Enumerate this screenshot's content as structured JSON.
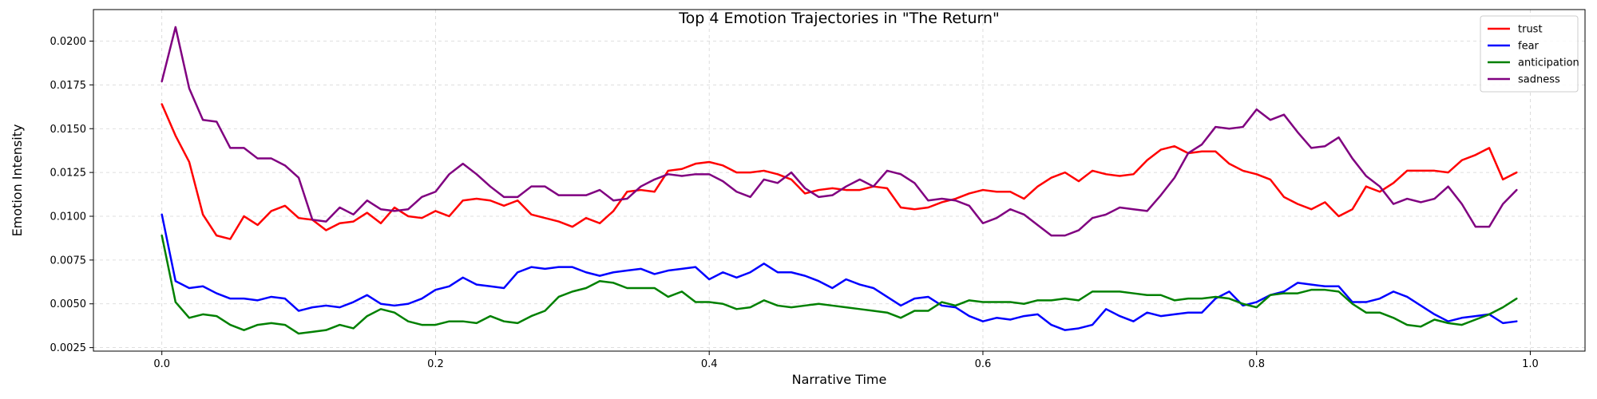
{
  "chart_data": {
    "type": "line",
    "title": "Top 4 Emotion Trajectories in \"The Return\"",
    "xlabel": "Narrative Time",
    "ylabel": "Emotion Intensity",
    "xlim": [
      -0.05,
      1.04
    ],
    "ylim": [
      0.0023,
      0.0218
    ],
    "xticks": [
      0.0,
      0.2,
      0.4,
      0.6,
      0.8,
      1.0
    ],
    "xtick_labels": [
      "0.0",
      "0.2",
      "0.4",
      "0.6",
      "0.8",
      "1.0"
    ],
    "yticks": [
      0.0025,
      0.005,
      0.0075,
      0.01,
      0.0125,
      0.015,
      0.0175,
      0.02
    ],
    "ytick_labels": [
      "0.0025",
      "0.0050",
      "0.0075",
      "0.0100",
      "0.0125",
      "0.0150",
      "0.0175",
      "0.0200"
    ],
    "grid": true,
    "legend_position": "top-right",
    "x": [
      0.0,
      0.01,
      0.02,
      0.03,
      0.04,
      0.05,
      0.06,
      0.07,
      0.08,
      0.09,
      0.1,
      0.11,
      0.12,
      0.13,
      0.14,
      0.15,
      0.16,
      0.17,
      0.18,
      0.19,
      0.2,
      0.21,
      0.22,
      0.23,
      0.24,
      0.25,
      0.26,
      0.27,
      0.28,
      0.29,
      0.3,
      0.31,
      0.32,
      0.33,
      0.34,
      0.35,
      0.36,
      0.37,
      0.38,
      0.39,
      0.4,
      0.41,
      0.42,
      0.43,
      0.44,
      0.45,
      0.46,
      0.47,
      0.48,
      0.49,
      0.5,
      0.51,
      0.52,
      0.53,
      0.54,
      0.55,
      0.56,
      0.57,
      0.58,
      0.59,
      0.6,
      0.61,
      0.62,
      0.63,
      0.64,
      0.65,
      0.66,
      0.67,
      0.68,
      0.69,
      0.7,
      0.71,
      0.72,
      0.73,
      0.74,
      0.75,
      0.76,
      0.77,
      0.78,
      0.79,
      0.8,
      0.81,
      0.82,
      0.83,
      0.84,
      0.85,
      0.86,
      0.87,
      0.88,
      0.89,
      0.9,
      0.91,
      0.92,
      0.93,
      0.94,
      0.95,
      0.96,
      0.97,
      0.98,
      0.99
    ],
    "series": [
      {
        "name": "trust",
        "color": "#ff0000",
        "values": [
          0.0164,
          0.0146,
          0.0131,
          0.0101,
          0.0089,
          0.0087,
          0.01,
          0.0095,
          0.0103,
          0.0106,
          0.0099,
          0.0098,
          0.0092,
          0.0096,
          0.0097,
          0.0102,
          0.0096,
          0.0105,
          0.01,
          0.0099,
          0.0103,
          0.01,
          0.0109,
          0.011,
          0.0109,
          0.0106,
          0.0109,
          0.0101,
          0.0099,
          0.0097,
          0.0094,
          0.0099,
          0.0096,
          0.0103,
          0.0114,
          0.0115,
          0.0114,
          0.0126,
          0.0127,
          0.013,
          0.0131,
          0.0129,
          0.0125,
          0.0125,
          0.0126,
          0.0124,
          0.0121,
          0.0113,
          0.0115,
          0.0116,
          0.0115,
          0.0115,
          0.0117,
          0.0116,
          0.0105,
          0.0104,
          0.0105,
          0.0108,
          0.011,
          0.0113,
          0.0115,
          0.0114,
          0.0114,
          0.011,
          0.0117,
          0.0122,
          0.0125,
          0.012,
          0.0126,
          0.0124,
          0.0123,
          0.0124,
          0.0132,
          0.0138,
          0.014,
          0.0136,
          0.0137,
          0.0137,
          0.013,
          0.0126,
          0.0124,
          0.0121,
          0.0111,
          0.0107,
          0.0104,
          0.0108,
          0.01,
          0.0104,
          0.0117,
          0.0114,
          0.0119,
          0.0126,
          0.0126,
          0.0126,
          0.0125,
          0.0132,
          0.0135,
          0.0139,
          0.0121,
          0.0125
        ]
      },
      {
        "name": "fear",
        "color": "#0000ff",
        "values": [
          0.0101,
          0.0063,
          0.0059,
          0.006,
          0.0056,
          0.0053,
          0.0053,
          0.0052,
          0.0054,
          0.0053,
          0.0046,
          0.0048,
          0.0049,
          0.0048,
          0.0051,
          0.0055,
          0.005,
          0.0049,
          0.005,
          0.0053,
          0.0058,
          0.006,
          0.0065,
          0.0061,
          0.006,
          0.0059,
          0.0068,
          0.0071,
          0.007,
          0.0071,
          0.0071,
          0.0068,
          0.0066,
          0.0068,
          0.0069,
          0.007,
          0.0067,
          0.0069,
          0.007,
          0.0071,
          0.0064,
          0.0068,
          0.0065,
          0.0068,
          0.0073,
          0.0068,
          0.0068,
          0.0066,
          0.0063,
          0.0059,
          0.0064,
          0.0061,
          0.0059,
          0.0054,
          0.0049,
          0.0053,
          0.0054,
          0.0049,
          0.0048,
          0.0043,
          0.004,
          0.0042,
          0.0041,
          0.0043,
          0.0044,
          0.0038,
          0.0035,
          0.0036,
          0.0038,
          0.0047,
          0.0043,
          0.004,
          0.0045,
          0.0043,
          0.0044,
          0.0045,
          0.0045,
          0.0053,
          0.0057,
          0.0049,
          0.0051,
          0.0055,
          0.0057,
          0.0062,
          0.0061,
          0.006,
          0.006,
          0.0051,
          0.0051,
          0.0053,
          0.0057,
          0.0054,
          0.0049,
          0.0044,
          0.004,
          0.0042,
          0.0043,
          0.0044,
          0.0039,
          0.004
        ]
      },
      {
        "name": "anticipation",
        "color": "#008000",
        "values": [
          0.0089,
          0.0051,
          0.0042,
          0.0044,
          0.0043,
          0.0038,
          0.0035,
          0.0038,
          0.0039,
          0.0038,
          0.0033,
          0.0034,
          0.0035,
          0.0038,
          0.0036,
          0.0043,
          0.0047,
          0.0045,
          0.004,
          0.0038,
          0.0038,
          0.004,
          0.004,
          0.0039,
          0.0043,
          0.004,
          0.0039,
          0.0043,
          0.0046,
          0.0054,
          0.0057,
          0.0059,
          0.0063,
          0.0062,
          0.0059,
          0.0059,
          0.0059,
          0.0054,
          0.0057,
          0.0051,
          0.0051,
          0.005,
          0.0047,
          0.0048,
          0.0052,
          0.0049,
          0.0048,
          0.0049,
          0.005,
          0.0049,
          0.0048,
          0.0047,
          0.0046,
          0.0045,
          0.0042,
          0.0046,
          0.0046,
          0.0051,
          0.0049,
          0.0052,
          0.0051,
          0.0051,
          0.0051,
          0.005,
          0.0052,
          0.0052,
          0.0053,
          0.0052,
          0.0057,
          0.0057,
          0.0057,
          0.0056,
          0.0055,
          0.0055,
          0.0052,
          0.0053,
          0.0053,
          0.0054,
          0.0053,
          0.005,
          0.0048,
          0.0055,
          0.0056,
          0.0056,
          0.0058,
          0.0058,
          0.0057,
          0.005,
          0.0045,
          0.0045,
          0.0042,
          0.0038,
          0.0037,
          0.0041,
          0.0039,
          0.0038,
          0.0041,
          0.0044,
          0.0048,
          0.0053
        ]
      },
      {
        "name": "sadness",
        "color": "#800080",
        "values": [
          0.0177,
          0.0208,
          0.0173,
          0.0155,
          0.0154,
          0.0139,
          0.0139,
          0.0133,
          0.0133,
          0.0129,
          0.0122,
          0.0098,
          0.0097,
          0.0105,
          0.0101,
          0.0109,
          0.0104,
          0.0103,
          0.0104,
          0.0111,
          0.0114,
          0.0124,
          0.013,
          0.0124,
          0.0117,
          0.0111,
          0.0111,
          0.0117,
          0.0117,
          0.0112,
          0.0112,
          0.0112,
          0.0115,
          0.0109,
          0.011,
          0.0117,
          0.0121,
          0.0124,
          0.0123,
          0.0124,
          0.0124,
          0.012,
          0.0114,
          0.0111,
          0.0121,
          0.0119,
          0.0125,
          0.0116,
          0.0111,
          0.0112,
          0.0117,
          0.0121,
          0.0117,
          0.0126,
          0.0124,
          0.0119,
          0.0109,
          0.011,
          0.0109,
          0.0106,
          0.0096,
          0.0099,
          0.0104,
          0.0101,
          0.0095,
          0.0089,
          0.0089,
          0.0092,
          0.0099,
          0.0101,
          0.0105,
          0.0104,
          0.0103,
          0.0112,
          0.0122,
          0.0136,
          0.0141,
          0.0151,
          0.015,
          0.0151,
          0.0161,
          0.0155,
          0.0158,
          0.0148,
          0.0139,
          0.014,
          0.0145,
          0.0133,
          0.0123,
          0.0117,
          0.0107,
          0.011,
          0.0108,
          0.011,
          0.0117,
          0.0107,
          0.0094,
          0.0094,
          0.0107,
          0.0115
        ]
      }
    ]
  }
}
